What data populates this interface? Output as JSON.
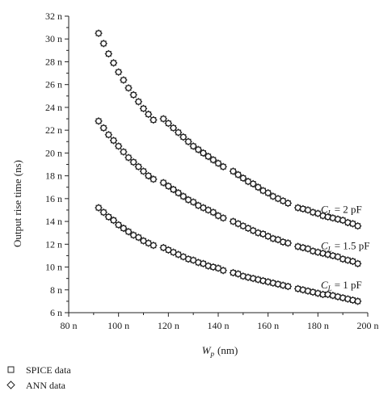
{
  "chart_data": {
    "type": "scatter",
    "title": "",
    "xlabel": {
      "main": "W",
      "sub": "p",
      "unit": "(nm)"
    },
    "ylabel": "Output rise time (ns)",
    "xlim": [
      80,
      200
    ],
    "ylim": [
      6,
      32
    ],
    "x_ticks": [
      "80 n",
      "100 n",
      "120 n",
      "140 n",
      "160 n",
      "180 n",
      "200 n"
    ],
    "y_ticks": [
      "6 n",
      "8 n",
      "10 n",
      "12 n",
      "14 n",
      "16 n",
      "18 n",
      "20 n",
      "22 n",
      "24 n",
      "26 n",
      "28 n",
      "30 n",
      "32 n"
    ],
    "grid": false,
    "legend_position": "bottom-left",
    "legend": [
      {
        "label": "SPICE data",
        "marker": "square"
      },
      {
        "label": "ANN data",
        "marker": "diamond"
      }
    ],
    "curve_labels": [
      {
        "label": "= 2 pF",
        "symbol": "C",
        "sub": "L"
      },
      {
        "label": "= 1.5 pF",
        "symbol": "C",
        "sub": "L"
      },
      {
        "label": "= 1 pF",
        "symbol": "C",
        "sub": "L"
      }
    ],
    "series": [
      {
        "load": "2 pF",
        "x": [
          92,
          94,
          96,
          98,
          100,
          102,
          104,
          106,
          108,
          110,
          112,
          114,
          118,
          120,
          122,
          124,
          126,
          128,
          130,
          132,
          134,
          136,
          138,
          140,
          142,
          146,
          148,
          150,
          152,
          154,
          156,
          158,
          160,
          162,
          164,
          166,
          168,
          172,
          174,
          176,
          178,
          180,
          182,
          184,
          186,
          188,
          190,
          192,
          194,
          196
        ],
        "y": [
          30.5,
          29.6,
          28.7,
          27.9,
          27.1,
          26.4,
          25.7,
          25.1,
          24.5,
          23.9,
          23.4,
          22.9,
          23.0,
          22.6,
          22.2,
          21.8,
          21.4,
          21.0,
          20.6,
          20.3,
          20.0,
          19.7,
          19.4,
          19.1,
          18.8,
          18.4,
          18.1,
          17.8,
          17.5,
          17.3,
          17.0,
          16.7,
          16.5,
          16.2,
          16.0,
          15.8,
          15.6,
          15.2,
          15.1,
          15.0,
          14.8,
          14.7,
          14.5,
          14.4,
          14.3,
          14.2,
          14.1,
          13.9,
          13.8,
          13.6
        ]
      },
      {
        "load": "1.5 pF",
        "x": [
          92,
          94,
          96,
          98,
          100,
          102,
          104,
          106,
          108,
          110,
          112,
          114,
          118,
          120,
          122,
          124,
          126,
          128,
          130,
          132,
          134,
          136,
          138,
          140,
          142,
          146,
          148,
          150,
          152,
          154,
          156,
          158,
          160,
          162,
          164,
          166,
          168,
          172,
          174,
          176,
          178,
          180,
          182,
          184,
          186,
          188,
          190,
          192,
          194,
          196
        ],
        "y": [
          22.8,
          22.2,
          21.6,
          21.1,
          20.6,
          20.1,
          19.6,
          19.2,
          18.8,
          18.4,
          18.0,
          17.7,
          17.4,
          17.1,
          16.8,
          16.5,
          16.2,
          15.9,
          15.7,
          15.4,
          15.2,
          15.0,
          14.8,
          14.5,
          14.3,
          14.0,
          13.8,
          13.6,
          13.4,
          13.2,
          13.0,
          12.9,
          12.7,
          12.5,
          12.4,
          12.2,
          12.1,
          11.8,
          11.7,
          11.6,
          11.4,
          11.3,
          11.2,
          11.1,
          11.0,
          10.9,
          10.7,
          10.6,
          10.5,
          10.3
        ]
      },
      {
        "load": "1 pF",
        "x": [
          92,
          94,
          96,
          98,
          100,
          102,
          104,
          106,
          108,
          110,
          112,
          114,
          118,
          120,
          122,
          124,
          126,
          128,
          130,
          132,
          134,
          136,
          138,
          140,
          142,
          146,
          148,
          150,
          152,
          154,
          156,
          158,
          160,
          162,
          164,
          166,
          168,
          172,
          174,
          176,
          178,
          180,
          182,
          184,
          186,
          188,
          190,
          192,
          194,
          196
        ],
        "y": [
          15.2,
          14.8,
          14.4,
          14.1,
          13.7,
          13.4,
          13.1,
          12.8,
          12.6,
          12.3,
          12.1,
          11.9,
          11.7,
          11.5,
          11.3,
          11.1,
          10.9,
          10.7,
          10.6,
          10.4,
          10.3,
          10.1,
          10.0,
          9.9,
          9.7,
          9.5,
          9.4,
          9.2,
          9.1,
          9.0,
          8.9,
          8.8,
          8.7,
          8.6,
          8.5,
          8.4,
          8.3,
          8.1,
          8.0,
          7.9,
          7.8,
          7.7,
          7.6,
          7.6,
          7.5,
          7.4,
          7.3,
          7.2,
          7.1,
          7.0
        ]
      }
    ]
  }
}
